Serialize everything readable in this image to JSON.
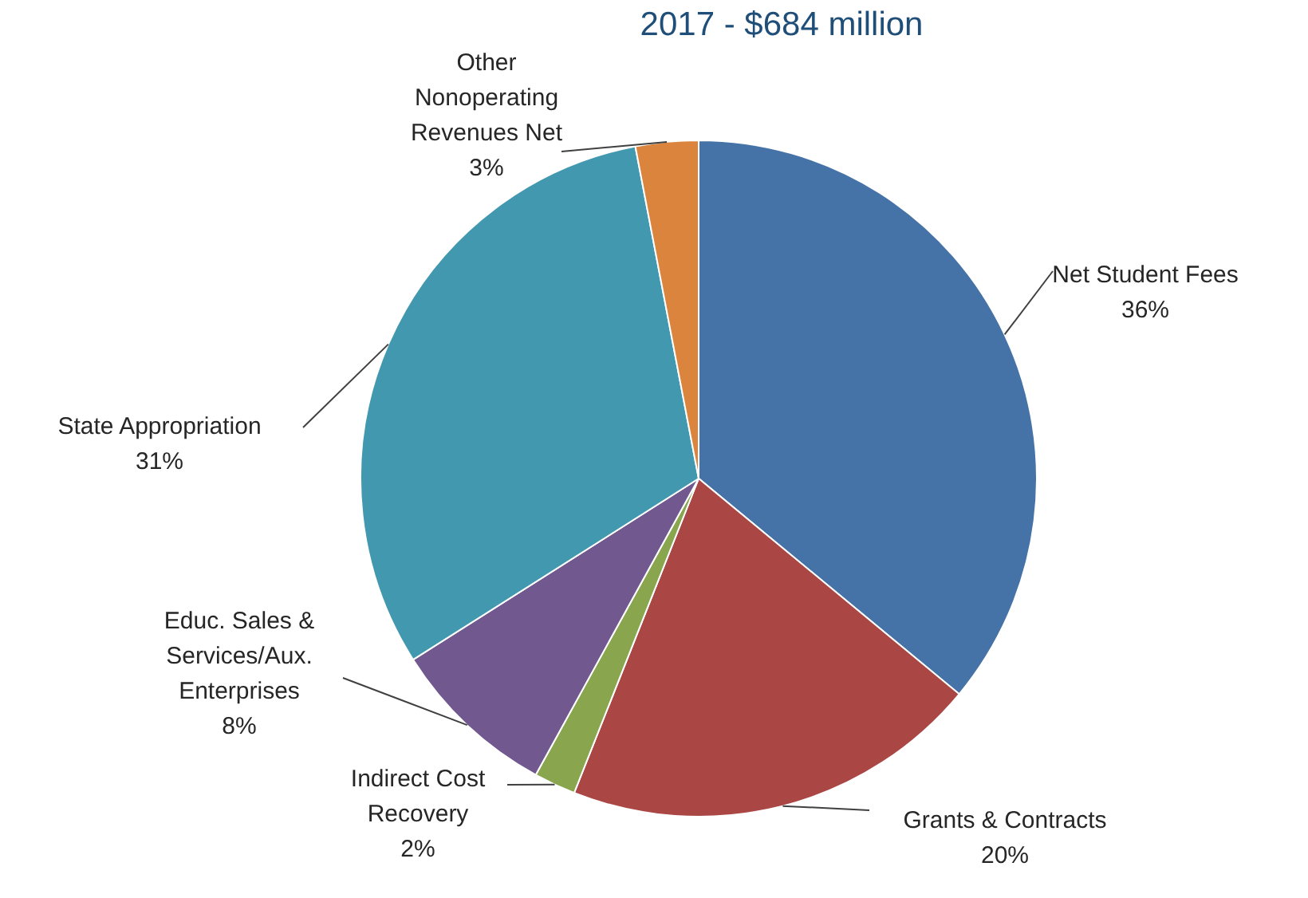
{
  "chart_data": {
    "type": "pie",
    "title": "2017 - $684 million",
    "categories": [
      "Net Student Fees",
      "Grants & Contracts",
      "Indirect Cost Recovery",
      "Educ. Sales & Services/Aux. Enterprises",
      "State Appropriation",
      "Other Nonoperating Revenues Net"
    ],
    "values": [
      36,
      20,
      2,
      8,
      31,
      3
    ],
    "value_labels": [
      "36%",
      "20%",
      "2%",
      "8%",
      "31%",
      "3%"
    ],
    "colors": [
      "#4572a7",
      "#aa4643",
      "#89a54e",
      "#71588f",
      "#4198af",
      "#db843d"
    ]
  }
}
